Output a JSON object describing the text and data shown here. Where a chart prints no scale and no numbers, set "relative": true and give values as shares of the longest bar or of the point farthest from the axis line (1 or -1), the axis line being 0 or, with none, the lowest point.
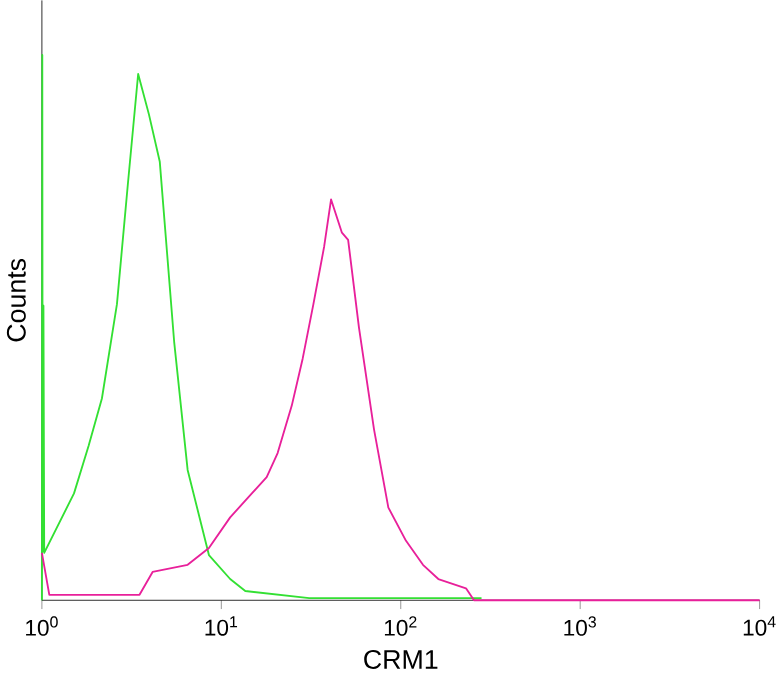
{
  "chart_data": {
    "type": "line",
    "xlabel": "CRM1",
    "ylabel": "Counts",
    "relative": true,
    "log": "x",
    "xlim": [
      1,
      10000
    ],
    "xticks": [
      {
        "value": 1,
        "label": "10$^{0}$"
      },
      {
        "value": 10,
        "label": "10$^{1}$"
      },
      {
        "value": 100,
        "label": "10$^{2}$"
      },
      {
        "value": 1000,
        "label": "10$^{3}$"
      },
      {
        "value": 10000,
        "label": "10$^{4}$"
      }
    ],
    "series": [
      {
        "color": "#33e033",
        "x": [
          1,
          1.005,
          1.01,
          1.02,
          1.03,
          1.51,
          1.82,
          2.16,
          2.62,
          3.01,
          3.44,
          3.95,
          4.54,
          5.46,
          6.49,
          8.53,
          11.2,
          13.6,
          30.9,
          282
        ],
        "values": [
          0,
          1.0,
          0.09,
          0.54,
          0.087,
          0.196,
          0.283,
          0.37,
          0.543,
          0.761,
          0.965,
          0.891,
          0.804,
          0.474,
          0.239,
          0.083,
          0.039,
          0.017,
          0.004,
          0.004
        ]
      },
      {
        "color": "#e8209a",
        "x": [
          1,
          1.1,
          2,
          3.5,
          4.14,
          6.49,
          8.53,
          11.2,
          14.8,
          17.9,
          20.6,
          24.7,
          28.4,
          32.6,
          37.4,
          40.9,
          47.0,
          50.9,
          58.5,
          71.0,
          85.3,
          107,
          133,
          162,
          231,
          256,
          10000
        ],
        "values": [
          0.087,
          0.01,
          0.01,
          0.01,
          0.052,
          0.065,
          0.096,
          0.152,
          0.196,
          0.226,
          0.27,
          0.357,
          0.443,
          0.543,
          0.648,
          0.735,
          0.674,
          0.661,
          0.5,
          0.313,
          0.17,
          0.109,
          0.065,
          0.039,
          0.022,
          0,
          0
        ]
      }
    ]
  }
}
